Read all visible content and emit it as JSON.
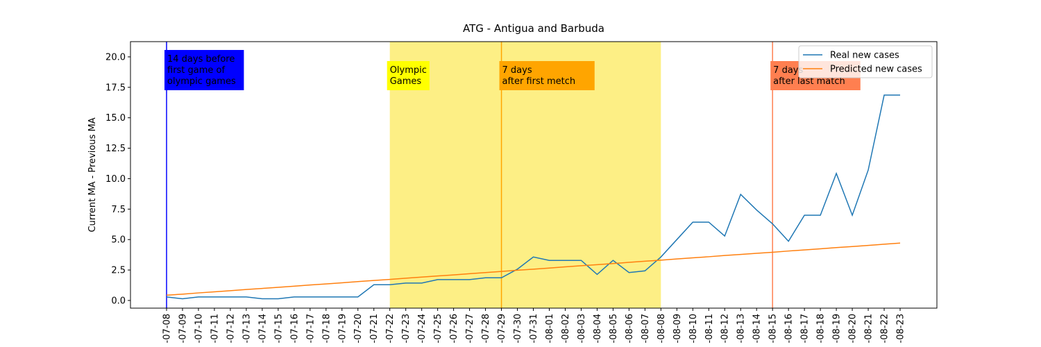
{
  "chart_data": {
    "type": "line",
    "title": "ATG - Antigua and Barbuda",
    "y_label": "Current MA - Previous MA",
    "categories": [
      "-07-08",
      "-07-09",
      "-07-10",
      "-07-11",
      "-07-12",
      "-07-13",
      "-07-14",
      "-07-15",
      "-07-16",
      "-07-17",
      "-07-18",
      "-07-19",
      "-07-20",
      "-07-21",
      "-07-22",
      "-07-23",
      "-07-24",
      "-07-25",
      "-07-26",
      "-07-27",
      "-07-28",
      "-07-29",
      "-07-30",
      "-07-31",
      "-08-01",
      "-08-02",
      "-08-03",
      "-08-04",
      "-08-05",
      "-08-06",
      "-08-07",
      "-08-08",
      "-08-09",
      "-08-10",
      "-08-11",
      "-08-12",
      "-08-13",
      "-08-14",
      "-08-15",
      "-08-16",
      "-08-17",
      "-08-18",
      "-08-19",
      "-08-20",
      "-08-21",
      "-08-22",
      "-08-23"
    ],
    "series": [
      {
        "name": "Real new cases",
        "color": "#1f77b4",
        "values": [
          0.29,
          0.14,
          0.29,
          0.29,
          0.29,
          0.29,
          0.14,
          0.14,
          0.29,
          0.29,
          0.29,
          0.29,
          0.29,
          1.29,
          1.29,
          1.43,
          1.43,
          1.71,
          1.71,
          1.71,
          1.86,
          1.86,
          2.57,
          3.57,
          3.29,
          3.29,
          3.29,
          2.14,
          3.29,
          2.29,
          2.43,
          3.57,
          5.0,
          6.43,
          6.43,
          5.29,
          8.71,
          7.43,
          6.29,
          4.86,
          7.0,
          7.0,
          10.43,
          7.0,
          10.71,
          16.86,
          16.86
        ]
      },
      {
        "name": "Predicted new cases",
        "color": "#ff7f0e",
        "values": [
          0.43,
          0.52,
          0.62,
          0.71,
          0.8,
          0.9,
          0.99,
          1.08,
          1.17,
          1.27,
          1.36,
          1.45,
          1.55,
          1.64,
          1.73,
          1.83,
          1.92,
          2.01,
          2.1,
          2.2,
          2.29,
          2.38,
          2.48,
          2.57,
          2.66,
          2.76,
          2.85,
          2.94,
          3.03,
          3.13,
          3.22,
          3.31,
          3.41,
          3.5,
          3.59,
          3.69,
          3.78,
          3.87,
          3.96,
          4.06,
          4.15,
          4.24,
          4.34,
          4.43,
          4.52,
          4.62,
          4.71
        ]
      }
    ],
    "span": {
      "from": "-07-22",
      "to": "-08-08",
      "color": "#fdef85",
      "label": [
        "Olympic",
        "Games"
      ],
      "box_color": "#ffff00",
      "text_color": "#000000"
    },
    "markers": [
      {
        "at": "-07-08",
        "color": "#0000ff",
        "label": [
          "14 days before",
          "first game of",
          "olympic games"
        ],
        "box_color": "#0000ff",
        "text_color": "#ffffff"
      },
      {
        "at": "-07-29",
        "color": "#ffa500",
        "label": [
          "7 days",
          "after first metch"
        ],
        "box_color": "#ffa500",
        "text_color": "#000000"
      },
      {
        "at": "-08-15",
        "color": "#ff7f50",
        "label": [
          "7 days",
          "after last match"
        ],
        "box_color": "#ff7f50",
        "text_color": "#000000"
      }
    ],
    "ylim": [
      -0.63,
      21.25
    ],
    "yticks": [
      {
        "value": 0,
        "label": "0.0"
      },
      2.5,
      {
        "value": 5,
        "label": "5.0"
      },
      7.5,
      {
        "value": 10,
        "label": "10.0"
      },
      12.5,
      {
        "value": 15,
        "label": "15.0"
      },
      17.5,
      {
        "value": 20,
        "label": "20.0"
      }
    ],
    "legend": "upper right"
  }
}
